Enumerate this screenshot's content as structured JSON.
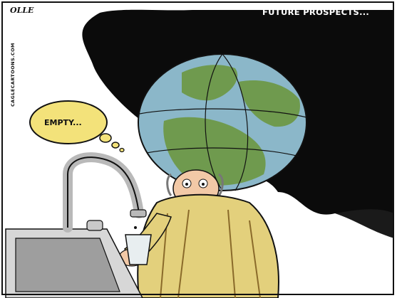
{
  "cartoon": {
    "caption": "FUTURE PROSPECTS...",
    "signature": "OLLE",
    "website": "CAGLECARTOONS.COM",
    "thought_bubble_text": "EMPTY..."
  },
  "colors": {
    "dark_cloud": "#0b0b0b",
    "ocean": "#8bb7c9",
    "land": "#6f9a4e",
    "robe": "#e3d07c",
    "robe_stripe": "#8a6a2a",
    "thought_bubble": "#f3e27a",
    "skin": "#f2c9a7",
    "metal": "#b9b9b9"
  }
}
